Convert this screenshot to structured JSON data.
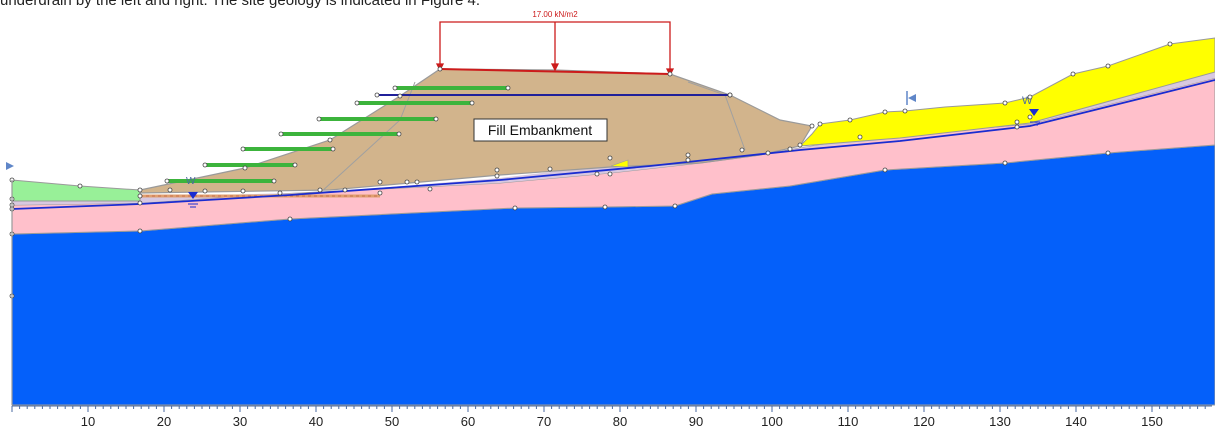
{
  "header_text": "underdrain by the left and right. The site geology is indicated in Figure 4.",
  "load": {
    "label": "17.00 kN/m2"
  },
  "material_label": "Fill Embankment",
  "water_marker_label": "W",
  "axis": {
    "ticks": [
      "10",
      "20",
      "30",
      "40",
      "50",
      "60",
      "70",
      "80",
      "90",
      "100",
      "110",
      "120",
      "130",
      "140",
      "150"
    ]
  },
  "colors": {
    "bedrock": "#0460fa",
    "residual_soil": "#ffc0cb",
    "fill": "#d2b48c",
    "colluvium": "#ffff00",
    "topsoil": "#98f098",
    "reinforcement": "#3cb43c",
    "water_line": "#1a2cd0",
    "load": "#cc1b1b"
  }
}
